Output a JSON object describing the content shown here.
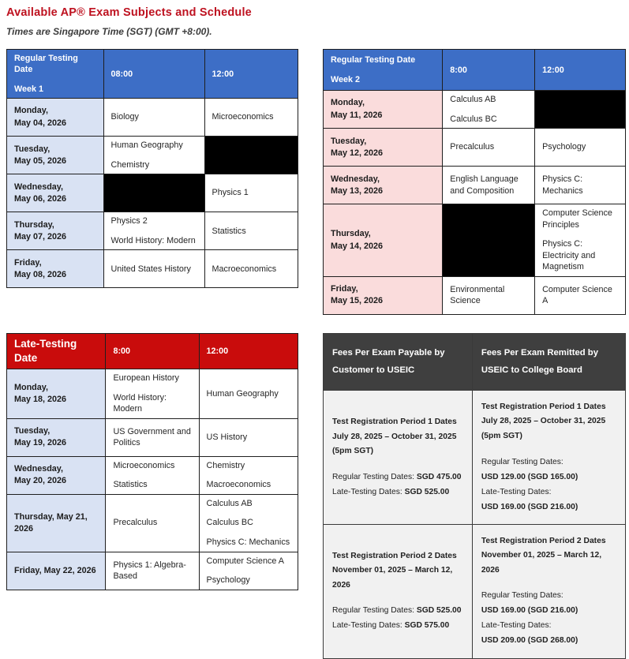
{
  "header": {
    "title": "Available AP® Exam Subjects and Schedule",
    "subtitle": "Times are Singapore Time (SGT) (GMT +8:00)."
  },
  "colors": {
    "title_red": "#BE1220",
    "header_blue": "#3D6EC6",
    "light_blue": "#D9E2F3",
    "light_pink": "#FADCDC",
    "header_red": "#C90C0C",
    "header_gray": "#3F3F3F",
    "body_gray": "#F1F1F1",
    "blocked_black": "#000000"
  },
  "schedules": [
    {
      "id": "week1",
      "title_lines": [
        "Regular Testing Date",
        "Week 1"
      ],
      "time_columns": [
        "08:00",
        "12:00"
      ],
      "rows": [
        {
          "date_lines": [
            "Monday,",
            "May 04, 2026"
          ],
          "cells": [
            [
              "Biology"
            ],
            [
              "Microeconomics"
            ]
          ]
        },
        {
          "date_lines": [
            "Tuesday,",
            "May 05, 2026"
          ],
          "cells": [
            [
              "Human Geography",
              "Chemistry"
            ],
            null
          ]
        },
        {
          "date_lines": [
            "Wednesday,",
            "May 06, 2026"
          ],
          "cells": [
            null,
            [
              "Physics 1"
            ]
          ]
        },
        {
          "date_lines": [
            "Thursday,",
            "May 07, 2026"
          ],
          "cells": [
            [
              "Physics 2",
              "World History: Modern"
            ],
            [
              "Statistics"
            ]
          ]
        },
        {
          "date_lines": [
            "Friday,",
            "May 08, 2026"
          ],
          "cells": [
            [
              "United States History"
            ],
            [
              "Macroeconomics"
            ]
          ]
        }
      ]
    },
    {
      "id": "week2",
      "title_lines": [
        "Regular Testing Date",
        "Week 2"
      ],
      "time_columns": [
        "8:00",
        "12:00"
      ],
      "rows": [
        {
          "date_lines": [
            "Monday,",
            "May 11, 2026"
          ],
          "cells": [
            [
              "Calculus AB",
              "Calculus BC"
            ],
            null
          ]
        },
        {
          "date_lines": [
            "Tuesday,",
            "May 12, 2026"
          ],
          "cells": [
            [
              "Precalculus"
            ],
            [
              "Psychology"
            ]
          ]
        },
        {
          "date_lines": [
            "Wednesday,",
            "May 13, 2026"
          ],
          "cells": [
            [
              "English Language and Composition"
            ],
            [
              "Physics C: Mechanics"
            ]
          ]
        },
        {
          "date_lines": [
            "Thursday,",
            "May 14, 2026"
          ],
          "cells": [
            null,
            [
              "Computer Science Principles",
              "Physics C: Electricity and Magnetism"
            ]
          ]
        },
        {
          "date_lines": [
            "Friday,",
            "May 15, 2026"
          ],
          "cells": [
            [
              "Environmental Science"
            ],
            [
              "Computer Science A"
            ]
          ]
        }
      ]
    },
    {
      "id": "late",
      "title_lines": [
        "Late-Testing",
        "Date"
      ],
      "time_columns": [
        "8:00",
        "12:00"
      ],
      "rows": [
        {
          "date_lines": [
            "Monday,",
            "May 18, 2026"
          ],
          "cells": [
            [
              "European History",
              "World History: Modern"
            ],
            [
              "Human Geography"
            ]
          ]
        },
        {
          "date_lines": [
            "Tuesday,",
            "May 19, 2026"
          ],
          "cells": [
            [
              "US Government and Politics"
            ],
            [
              "US History"
            ]
          ]
        },
        {
          "date_lines": [
            "Wednesday,",
            "May 20, 2026"
          ],
          "cells": [
            [
              "Microeconomics",
              "Statistics"
            ],
            [
              "Chemistry",
              "Macroeconomics"
            ]
          ]
        },
        {
          "date_lines": [
            "Thursday, May 21, 2026"
          ],
          "cells": [
            [
              "Precalculus"
            ],
            [
              "Calculus AB",
              "Calculus BC",
              "Physics C: Mechanics"
            ]
          ]
        },
        {
          "date_lines": [
            "Friday, May 22, 2026"
          ],
          "cells": [
            [
              "Physics 1: Algebra-Based"
            ],
            [
              "Computer Science A",
              "Psychology"
            ]
          ]
        }
      ]
    }
  ],
  "fees": {
    "headers": [
      [
        "Fees Per Exam Payable by",
        "Customer to USEIC"
      ],
      [
        "Fees Per Exam Remitted by",
        "USEIC to College Board"
      ]
    ],
    "rows": [
      {
        "cells": [
          {
            "title_lines": [
              "Test Registration Period 1 Dates",
              "July 28, 2025 – October 31, 2025",
              "(5pm SGT)"
            ],
            "items": [
              {
                "label": "Regular Testing Dates: ",
                "value": "SGD 475.00",
                "inline": true
              },
              {
                "label": "Late-Testing Dates: ",
                "value": "SGD 525.00",
                "inline": true
              }
            ]
          },
          {
            "title_lines": [
              "Test Registration Period 1 Dates",
              "July 28, 2025 – October 31, 2025",
              "(5pm SGT)"
            ],
            "items": [
              {
                "label": "Regular Testing Dates:",
                "value": "USD 129.00 (SGD 165.00)",
                "inline": false
              },
              {
                "label": "Late-Testing Dates:",
                "value": "USD 169.00 (SGD 216.00)",
                "inline": false
              }
            ]
          }
        ]
      },
      {
        "cells": [
          {
            "title_lines": [
              "Test Registration Period 2 Dates",
              "November 01, 2025 – March 12, 2026"
            ],
            "items": [
              {
                "label": "Regular Testing Dates: ",
                "value": "SGD 525.00",
                "inline": true
              },
              {
                "label": "Late-Testing Dates: ",
                "value": "SGD 575.00",
                "inline": true
              }
            ]
          },
          {
            "title_lines": [
              "Test Registration Period 2 Dates",
              "November 01, 2025 – March 12, 2026"
            ],
            "items": [
              {
                "label": "Regular Testing Dates:",
                "value": "USD 169.00 (SGD 216.00)",
                "inline": false
              },
              {
                "label": "Late-Testing Dates:",
                "value": "USD 209.00 (SGD 268.00)",
                "inline": false
              }
            ]
          }
        ]
      }
    ]
  }
}
